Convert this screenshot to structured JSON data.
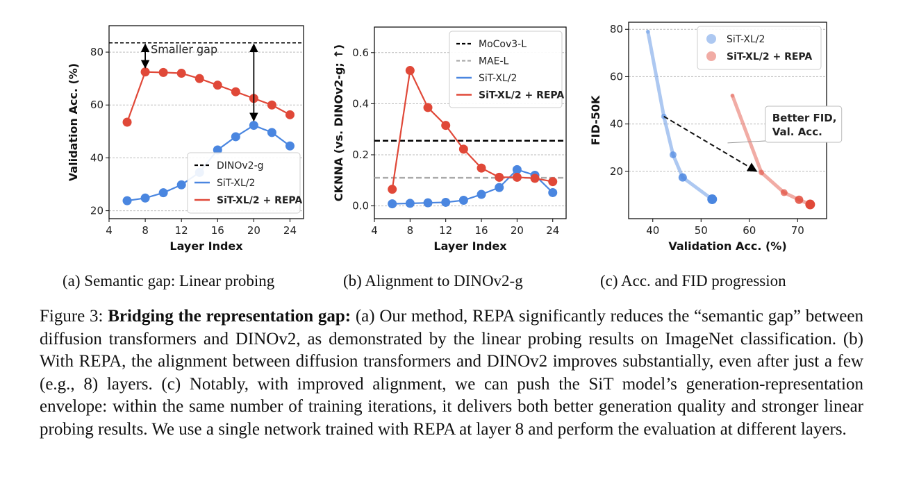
{
  "chart_data": [
    {
      "type": "line",
      "xlabel": "Layer Index",
      "ylabel": "Validation Acc. (%)",
      "xlim": [
        4,
        25.5
      ],
      "ylim": [
        17,
        90
      ],
      "xticks": [
        4,
        8,
        12,
        16,
        20,
        24
      ],
      "yticks": [
        20,
        40,
        60,
        80
      ],
      "grid": "horizontal-dashed",
      "legend_position": "lower-right",
      "reference_lines": [
        {
          "name": "DINOv2-g",
          "y": 83.5,
          "color": "#000000",
          "style": "dashed"
        }
      ],
      "annotations": [
        {
          "text": "Smaller gap"
        }
      ],
      "gap_arrows": [
        {
          "x": 8,
          "y_from": 83.5,
          "y_to": 72.5
        },
        {
          "x": 20,
          "y_from": 83.5,
          "y_to": 52.5
        }
      ],
      "series": [
        {
          "name": "SiT-XL/2",
          "color": "#4a86e0",
          "x": [
            6,
            8,
            10,
            12,
            14,
            16,
            18,
            20,
            22,
            24
          ],
          "y": [
            23.8,
            24.8,
            26.8,
            29.8,
            34.5,
            43.0,
            48.0,
            52.3,
            49.6,
            44.5
          ]
        },
        {
          "name": "SiT-XL/2 + REPA",
          "color": "#e04838",
          "x": [
            6,
            8,
            10,
            12,
            14,
            16,
            18,
            20,
            22,
            24
          ],
          "y": [
            53.5,
            72.5,
            72.3,
            72.0,
            70.0,
            67.5,
            65.0,
            62.5,
            60.0,
            56.3
          ]
        }
      ]
    },
    {
      "type": "line",
      "xlabel": "Layer Index",
      "ylabel": "CKNNA (vs. DINOv2-g; ↑)",
      "xlim": [
        4,
        25.5
      ],
      "ylim": [
        -0.05,
        0.7
      ],
      "xticks": [
        4,
        8,
        12,
        16,
        20,
        24
      ],
      "yticks": [
        0.0,
        0.2,
        0.4,
        0.6
      ],
      "grid": "horizontal-dashed",
      "legend_position": "top-right",
      "reference_lines": [
        {
          "name": "MoCov3-L",
          "y": 0.255,
          "color": "#000000",
          "style": "dashed"
        },
        {
          "name": "MAE-L",
          "y": 0.11,
          "color": "#aaaaaa",
          "style": "dashed"
        }
      ],
      "series": [
        {
          "name": "SiT-XL/2",
          "color": "#4a86e0",
          "x": [
            6,
            8,
            10,
            12,
            14,
            16,
            18,
            20,
            22,
            24
          ],
          "y": [
            0.008,
            0.01,
            0.012,
            0.014,
            0.022,
            0.045,
            0.072,
            0.142,
            0.12,
            0.052
          ]
        },
        {
          "name": "SiT-XL/2 + REPA",
          "color": "#e04838",
          "x": [
            6,
            8,
            10,
            12,
            14,
            16,
            18,
            20,
            22,
            24
          ],
          "y": [
            0.065,
            0.53,
            0.385,
            0.315,
            0.222,
            0.148,
            0.112,
            0.112,
            0.108,
            0.095
          ]
        }
      ]
    },
    {
      "type": "scatter",
      "xlabel": "Validation Acc. (%)",
      "ylabel": "FID-50K",
      "xlim": [
        35,
        76
      ],
      "ylim": [
        0,
        83
      ],
      "xticks": [
        40,
        50,
        60,
        70
      ],
      "yticks": [
        20,
        40,
        60,
        80
      ],
      "grid": "horizontal-dashed",
      "legend_position": "top-right",
      "annotations": [
        {
          "text": "Better FID,\nVal. Acc."
        }
      ],
      "arrow": {
        "from": [
          42.3,
          43.2
        ],
        "to": [
          61.5,
          20.0
        ]
      },
      "series": [
        {
          "name": "SiT-XL/2",
          "color": "#4a86e0",
          "x": [
            39.0,
            42.3,
            44.2,
            46.2,
            52.3
          ],
          "y": [
            79.0,
            43.2,
            27.0,
            17.4,
            8.2
          ],
          "sizes": [
            3,
            4,
            5,
            6,
            7
          ]
        },
        {
          "name": "SiT-XL/2 + REPA",
          "color": "#e04838",
          "x": [
            56.5,
            62.5,
            67.2,
            70.3,
            72.6
          ],
          "y": [
            52.0,
            19.5,
            11.0,
            8.0,
            6.0
          ],
          "sizes": [
            3,
            4,
            5,
            6,
            7
          ]
        }
      ]
    }
  ],
  "subcaptions": {
    "a": "(a) Semantic gap: Linear probing",
    "b": "(b) Alignment to DINOv2-g",
    "c": "(c) Acc. and FID progression"
  },
  "caption": {
    "label": "Figure 3:",
    "bold": "Bridging the representation gap:",
    "text": "(a) Our method, REPA significantly reduces the “semantic gap” between diffusion transformers and DINOv2, as demonstrated by the linear probing results on ImageNet classification. (b) With REPA, the alignment between diffusion transformers and DINOv2 improves substantially, even after just a few (e.g., 8) layers. (c) Notably, with improved alignment, we can push the SiT model’s generation-representation envelope: within the same number of training iterations, it delivers both better generation quality and stronger linear probing results. We use a single network trained with REPA at layer 8 and perform the evaluation at different layers."
  }
}
